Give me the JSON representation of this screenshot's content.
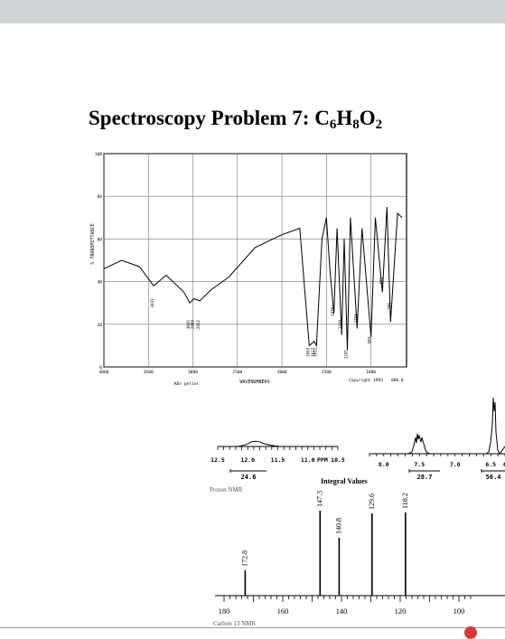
{
  "slide": {
    "title_prefix": "Spectroscopy Problem 7: C",
    "sub1": "6",
    "h": "H",
    "sub2": "8",
    "o": "O",
    "sub3": "2"
  },
  "ir": {
    "ylabel": "% TRANSMITTANCE",
    "xlabel": "WAVENUMBERS",
    "sample": "KBr pellet",
    "copyright": "Copyright 1993",
    "code": "888.8",
    "yticks": [
      "100",
      "80",
      "60",
      "40",
      "20",
      "0"
    ],
    "xticks": [
      "4000",
      "3500",
      "3000",
      "2500",
      "2000",
      "1500",
      "1000"
    ],
    "peaks": [
      "3441",
      "3035",
      "2989",
      "2922",
      "1693",
      "1637",
      "1612",
      "1416",
      "1329",
      "1265",
      "1155",
      "999",
      "871",
      "780"
    ]
  },
  "proton": {
    "left_ticks": [
      "12.5",
      "12.0",
      "11.5",
      "11.0",
      "10.5"
    ],
    "ppm": "PPM",
    "right_ticks": [
      "8.0",
      "7.5",
      "7.0",
      "6.5",
      "6"
    ],
    "integrals": [
      "24.6",
      "28.7",
      "56.4"
    ],
    "integral_label": "Integral Values",
    "caption": "Proton NMR"
  },
  "carbon": {
    "peaks": [
      "172.8",
      "147.3",
      "140.8",
      "129.6",
      "118.2"
    ],
    "axis": [
      "180",
      "160",
      "140",
      "120",
      "100"
    ],
    "caption": "Carbon 13 NMR"
  },
  "chart_data": [
    {
      "type": "line",
      "title": "",
      "xlabel": "WAVENUMBERS",
      "ylabel": "% TRANSMITTANCE",
      "xlim": [
        4000,
        600
      ],
      "ylim": [
        0,
        100
      ],
      "grid": true,
      "x": [
        4000,
        3800,
        3600,
        3441,
        3300,
        3100,
        3035,
        2989,
        2922,
        2800,
        2600,
        2300,
        2000,
        1800,
        1693,
        1637,
        1612,
        1550,
        1500,
        1460,
        1416,
        1380,
        1329,
        1300,
        1265,
        1230,
        1155,
        1100,
        999,
        950,
        871,
        820,
        780,
        700,
        650
      ],
      "y": [
        46,
        50,
        47,
        38,
        43,
        35,
        30,
        32,
        31,
        36,
        42,
        56,
        62,
        65,
        10,
        12,
        10,
        60,
        70,
        45,
        25,
        65,
        15,
        60,
        8,
        70,
        18,
        65,
        14,
        70,
        35,
        75,
        21,
        72,
        70
      ]
    },
    {
      "type": "line",
      "title": "",
      "xlabel": "",
      "ylabel": "",
      "x": [
        172.8,
        147.3,
        140.8,
        129.6,
        118.2
      ],
      "y": [
        1,
        1,
        1,
        1,
        1
      ]
    }
  ]
}
